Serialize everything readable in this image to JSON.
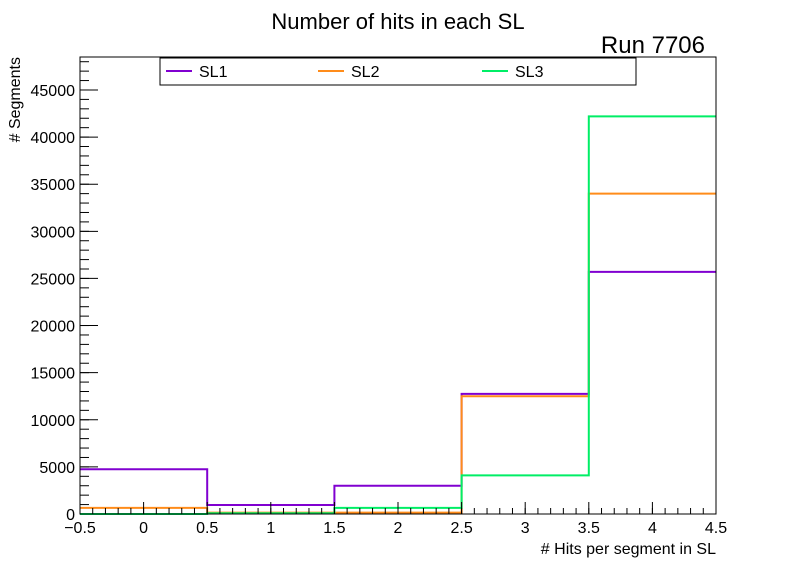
{
  "chart_data": {
    "type": "step-histogram",
    "title": "Number of hits in each SL",
    "annotation": "Run 7706",
    "xlabel": "# Hits per segment in SL",
    "ylabel": "# Segments",
    "xlim": [
      -0.5,
      4.5
    ],
    "ylim": [
      0,
      48500
    ],
    "x_ticks": [
      -0.5,
      0,
      0.5,
      1,
      1.5,
      2,
      2.5,
      3,
      3.5,
      4,
      4.5
    ],
    "x_tick_labels": [
      "−0.5",
      "0",
      "0.5",
      "1",
      "1.5",
      "2",
      "2.5",
      "3",
      "3.5",
      "4",
      "4.5"
    ],
    "y_ticks": [
      0,
      5000,
      10000,
      15000,
      20000,
      25000,
      30000,
      35000,
      40000,
      45000
    ],
    "y_tick_labels": [
      "0",
      "5000",
      "10000",
      "15000",
      "20000",
      "25000",
      "30000",
      "35000",
      "40000",
      "45000"
    ],
    "bin_edges": [
      -0.5,
      0.5,
      1.5,
      2.5,
      3.5,
      4.5
    ],
    "categories": [
      0,
      1,
      2,
      3,
      4
    ],
    "legend_position": "top",
    "grid": false,
    "series": [
      {
        "name": "SL1",
        "color": "#8000d0",
        "values": [
          4750,
          950,
          3000,
          12750,
          25700
        ]
      },
      {
        "name": "SL2",
        "color": "#ff8c1a",
        "values": [
          650,
          150,
          150,
          12500,
          34000
        ]
      },
      {
        "name": "SL3",
        "color": "#00ee66",
        "values": [
          0,
          80,
          650,
          4100,
          42200
        ]
      }
    ]
  }
}
